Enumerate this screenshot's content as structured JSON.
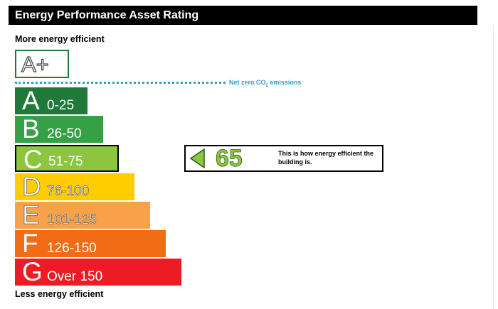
{
  "title": "Energy Performance Asset Rating",
  "more_label": "More energy efficient",
  "less_label": "Less energy efficient",
  "aplus": {
    "label": "A+"
  },
  "net_zero": {
    "text_pre": "Net zero CO",
    "text_sub": "2",
    "text_post": " emissions",
    "color": "#2a9fc8"
  },
  "bands": [
    {
      "letter": "A",
      "range": "0-25",
      "color": "#1f7a3a"
    },
    {
      "letter": "B",
      "range": "26-50",
      "color": "#35a044"
    },
    {
      "letter": "C",
      "range": "51-75",
      "color": "#8cc63f"
    },
    {
      "letter": "D",
      "range": "76-100",
      "color": "#ffcc00"
    },
    {
      "letter": "E",
      "range": "101-125",
      "color": "#f7a14a"
    },
    {
      "letter": "F",
      "range": "126-150",
      "color": "#f26b15"
    },
    {
      "letter": "G",
      "range": "Over 150",
      "color": "#ed1c24"
    }
  ],
  "current": {
    "score": "65",
    "band": "C",
    "text": "This is how energy efficient the building is.",
    "color": "#8cc63f"
  }
}
